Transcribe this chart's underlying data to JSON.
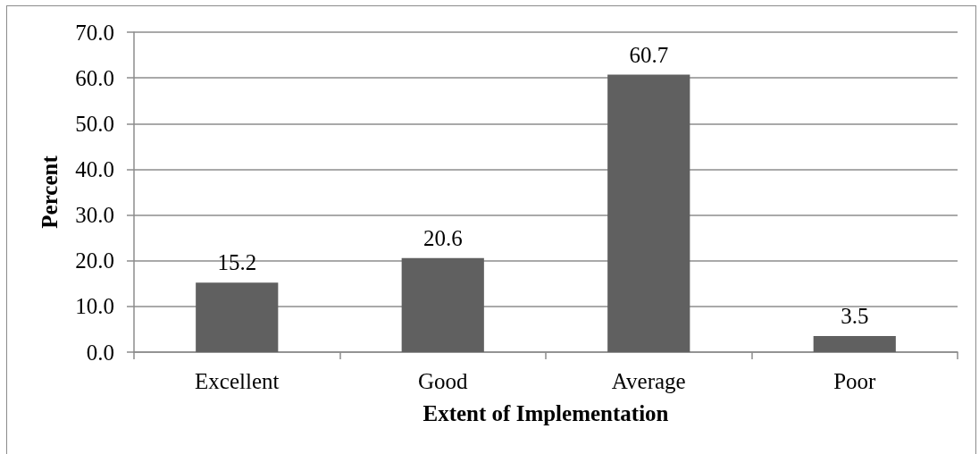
{
  "chart_data": {
    "type": "bar",
    "xlabel": "Extent of Implementation",
    "ylabel": "Percent",
    "categories": [
      "Excellent",
      "Good",
      "Average",
      "Poor"
    ],
    "values": [
      15.2,
      20.6,
      60.7,
      3.5
    ],
    "color": "#606060",
    "ylim": [
      0,
      70
    ],
    "yticks": [
      {
        "value": 0,
        "label": "0.0"
      },
      {
        "value": 10,
        "label": "10.0"
      },
      {
        "value": 20,
        "label": "20.0"
      },
      {
        "value": 30,
        "label": "30.0"
      },
      {
        "value": 40,
        "label": "40.0"
      },
      {
        "value": 50,
        "label": "50.0"
      },
      {
        "value": 60,
        "label": "60.0"
      },
      {
        "value": 70,
        "label": "70.0"
      }
    ],
    "grid": "y",
    "data_labels": true
  }
}
